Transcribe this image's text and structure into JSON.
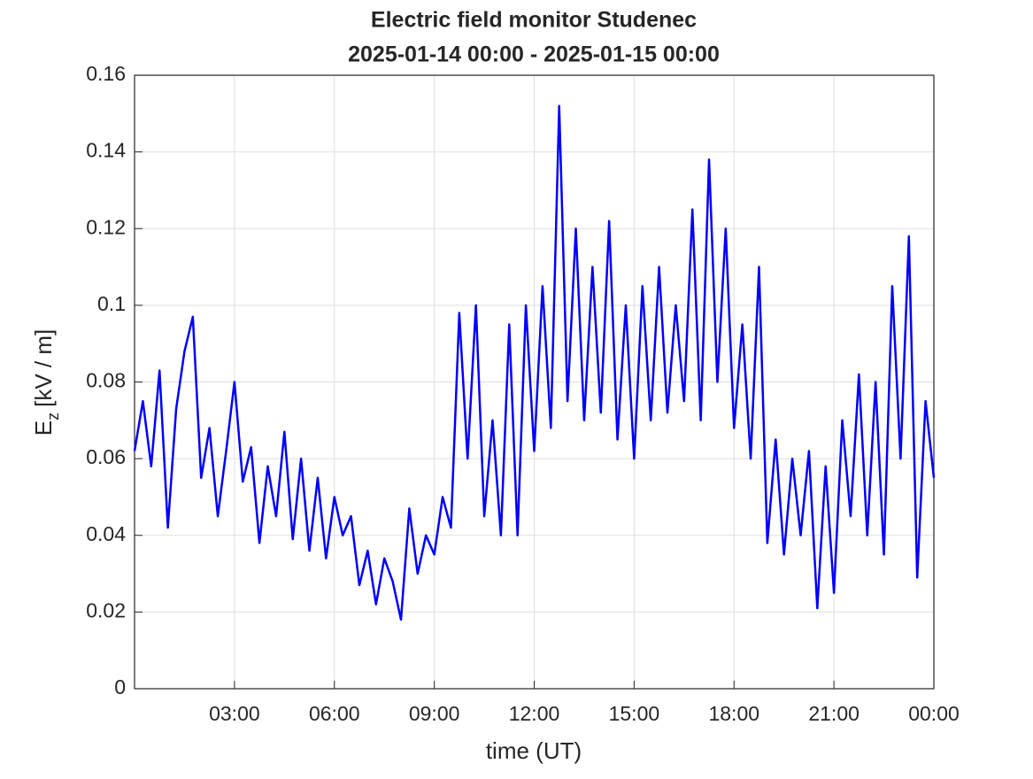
{
  "chart_data": {
    "type": "line",
    "title": "Electric field monitor Studenec",
    "subtitle": "2025-01-14 00:00 - 2025-01-15 00:00",
    "xlabel": "time (UT)",
    "ylabel": [
      "E",
      "z",
      "[kV / m]"
    ],
    "x": [
      0,
      0.25,
      0.5,
      0.75,
      1,
      1.25,
      1.5,
      1.75,
      2,
      2.25,
      2.5,
      2.75,
      3,
      3.25,
      3.5,
      3.75,
      4,
      4.25,
      4.5,
      4.75,
      5,
      5.25,
      5.5,
      5.75,
      6,
      6.25,
      6.5,
      6.75,
      7,
      7.25,
      7.5,
      7.75,
      8,
      8.25,
      8.5,
      8.75,
      9,
      9.25,
      9.5,
      9.75,
      10,
      10.25,
      10.5,
      10.75,
      11,
      11.25,
      11.5,
      11.75,
      12,
      12.25,
      12.5,
      12.75,
      13,
      13.25,
      13.5,
      13.75,
      14,
      14.25,
      14.5,
      14.75,
      15,
      15.25,
      15.5,
      15.75,
      16,
      16.25,
      16.5,
      16.75,
      17,
      17.25,
      17.5,
      17.75,
      18,
      18.25,
      18.5,
      18.75,
      19,
      19.25,
      19.5,
      19.75,
      20,
      20.25,
      20.5,
      20.75,
      21,
      21.25,
      21.5,
      21.75,
      22,
      22.25,
      22.5,
      22.75,
      23,
      23.25,
      23.5,
      23.75,
      24
    ],
    "series": [
      {
        "name": "Ez",
        "color": "#0000ff",
        "values": [
          0.062,
          0.075,
          0.058,
          0.083,
          0.042,
          0.073,
          0.088,
          0.097,
          0.055,
          0.068,
          0.045,
          0.062,
          0.08,
          0.054,
          0.063,
          0.038,
          0.058,
          0.045,
          0.067,
          0.039,
          0.06,
          0.036,
          0.055,
          0.034,
          0.05,
          0.04,
          0.045,
          0.027,
          0.036,
          0.022,
          0.034,
          0.028,
          0.018,
          0.047,
          0.03,
          0.04,
          0.035,
          0.05,
          0.042,
          0.098,
          0.06,
          0.1,
          0.045,
          0.07,
          0.04,
          0.095,
          0.04,
          0.1,
          0.062,
          0.105,
          0.068,
          0.152,
          0.075,
          0.12,
          0.07,
          0.11,
          0.072,
          0.122,
          0.065,
          0.1,
          0.06,
          0.105,
          0.07,
          0.11,
          0.072,
          0.1,
          0.075,
          0.125,
          0.07,
          0.138,
          0.08,
          0.12,
          0.068,
          0.095,
          0.06,
          0.11,
          0.038,
          0.065,
          0.035,
          0.06,
          0.04,
          0.062,
          0.021,
          0.058,
          0.025,
          0.07,
          0.045,
          0.082,
          0.04,
          0.08,
          0.035,
          0.105,
          0.06,
          0.118,
          0.029,
          0.075,
          0.055
        ]
      }
    ],
    "xlim": [
      0,
      24
    ],
    "xticks": [
      {
        "value": 3,
        "label": "03:00"
      },
      {
        "value": 6,
        "label": "06:00"
      },
      {
        "value": 9,
        "label": "09:00"
      },
      {
        "value": 12,
        "label": "12:00"
      },
      {
        "value": 15,
        "label": "15:00"
      },
      {
        "value": 18,
        "label": "18:00"
      },
      {
        "value": 21,
        "label": "21:00"
      },
      {
        "value": 24,
        "label": "00:00"
      }
    ],
    "ylim": [
      0,
      0.16
    ],
    "yticks": [
      0,
      0.02,
      0.04,
      0.06,
      0.08,
      0.1,
      0.12,
      0.14,
      0.16
    ],
    "grid": true
  }
}
